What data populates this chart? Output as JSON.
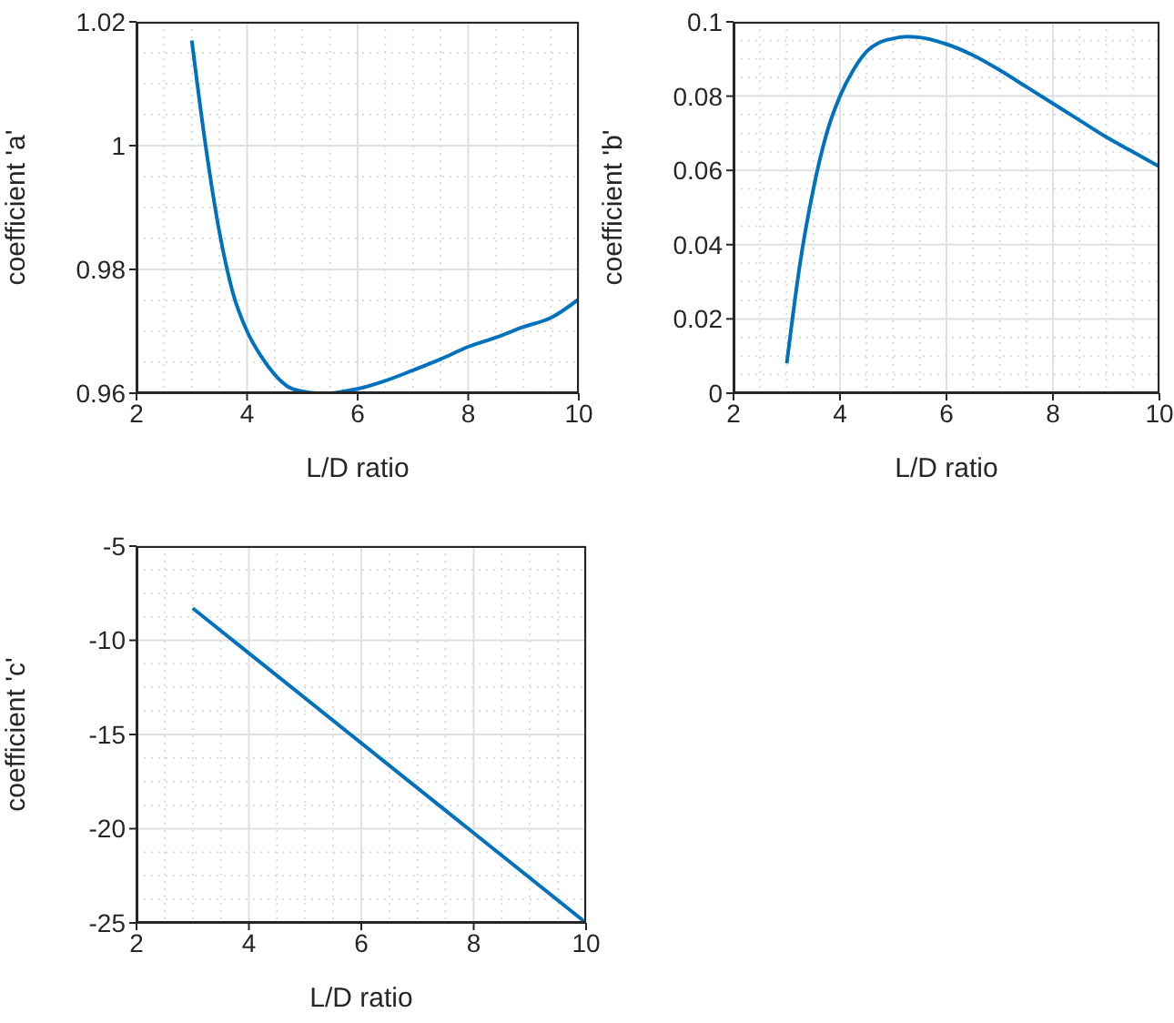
{
  "chart_data": [
    {
      "type": "line",
      "xlabel": "L/D ratio",
      "ylabel": "coefficient 'a'",
      "xlim": [
        2,
        10
      ],
      "xticks": [
        2,
        4,
        6,
        8,
        10
      ],
      "ylim": [
        0.96,
        1.02
      ],
      "yticks": [
        0.96,
        0.98,
        1,
        1.02
      ],
      "grid": true,
      "series": [
        {
          "color": "#0072bd",
          "x": [
            3,
            3.25,
            3.5,
            3.75,
            4,
            4.25,
            4.5,
            4.75,
            5,
            5.25,
            5.5,
            5.75,
            6,
            6.5,
            7,
            7.5,
            8,
            8.5,
            9,
            9.5,
            10
          ],
          "values": [
            1.017,
            1.0,
            0.986,
            0.976,
            0.97,
            0.966,
            0.963,
            0.961,
            0.9603,
            0.96,
            0.96,
            0.9603,
            0.9607,
            0.962,
            0.9637,
            0.9655,
            0.9675,
            0.969,
            0.9707,
            0.9722,
            0.9752
          ]
        }
      ]
    },
    {
      "type": "line",
      "xlabel": "L/D ratio",
      "ylabel": "coefficient 'b'",
      "xlim": [
        2,
        10
      ],
      "xticks": [
        2,
        4,
        6,
        8,
        10
      ],
      "ylim": [
        0,
        0.1
      ],
      "yticks": [
        0,
        0.02,
        0.04,
        0.06,
        0.08,
        0.1
      ],
      "grid": true,
      "series": [
        {
          "color": "#0072bd",
          "x": [
            3,
            3.25,
            3.5,
            3.75,
            4,
            4.25,
            4.5,
            4.75,
            5,
            5.25,
            5.5,
            6,
            6.5,
            7,
            7.5,
            8,
            8.5,
            9,
            9.5,
            10
          ],
          "values": [
            0.008,
            0.035,
            0.055,
            0.07,
            0.08,
            0.087,
            0.092,
            0.0945,
            0.0955,
            0.096,
            0.0958,
            0.094,
            0.091,
            0.087,
            0.0825,
            0.078,
            0.0735,
            0.069,
            0.065,
            0.061
          ]
        }
      ]
    },
    {
      "type": "line",
      "xlabel": "L/D ratio",
      "ylabel": "coefficient 'c'",
      "xlim": [
        2,
        10
      ],
      "xticks": [
        2,
        4,
        6,
        8,
        10
      ],
      "ylim": [
        -25,
        -5
      ],
      "yticks": [
        -25,
        -20,
        -15,
        -10,
        -5
      ],
      "grid": true,
      "series": [
        {
          "color": "#0072bd",
          "x": [
            3,
            10
          ],
          "values": [
            -8.3,
            -25
          ]
        }
      ]
    }
  ]
}
